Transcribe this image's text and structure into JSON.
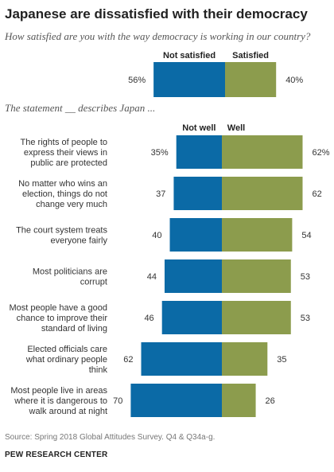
{
  "title": "Japanese are dissatisfied with their democracy",
  "subtitle": "How satisfied are you with the way democracy is working in our country?",
  "chart_data": [
    {
      "type": "bar",
      "orientation": "horizontal-diverging",
      "series": [
        {
          "name": "Not satisfied",
          "color": "#0b6aa6",
          "values": [
            56
          ],
          "value_labels": [
            "56%"
          ]
        },
        {
          "name": "Satisfied",
          "color": "#8c9c4d",
          "values": [
            40
          ],
          "value_labels": [
            "40%"
          ]
        }
      ],
      "categories": [
        ""
      ]
    },
    {
      "type": "bar",
      "orientation": "horizontal-diverging",
      "title": "The statement __ describes Japan ...",
      "categories": [
        "The rights of people to express their views in public are protected",
        "No matter who wins an election, things do not change very much",
        "The court system treats everyone fairly",
        "Most politicians are corrupt",
        "Most people have a good chance to improve their standard of living",
        "Elected officials care what ordinary people think",
        "Most people live in areas where it is dangerous to walk around at night"
      ],
      "category_lines": [
        [
          "The rights of people to",
          "express their views in",
          "public are protected"
        ],
        [
          "No matter who wins an",
          "election, things do not",
          "change very much"
        ],
        [
          "The court system treats",
          "everyone fairly"
        ],
        [
          "Most politicians are",
          "corrupt"
        ],
        [
          "Most people have a good",
          "chance to improve their",
          "standard of living"
        ],
        [
          "Elected officials care",
          "what ordinary people",
          "think"
        ],
        [
          "Most people live in areas",
          "where it is dangerous to",
          "walk around at night"
        ]
      ],
      "series": [
        {
          "name": "Not well",
          "color": "#0b6aa6",
          "values": [
            35,
            37,
            40,
            44,
            46,
            62,
            70
          ],
          "value_labels": [
            "35%",
            "37",
            "40",
            "44",
            "46",
            "62",
            "70"
          ]
        },
        {
          "name": "Well",
          "color": "#8c9c4d",
          "values": [
            62,
            62,
            54,
            53,
            53,
            35,
            26
          ],
          "value_labels": [
            "62%",
            "62",
            "54",
            "53",
            "53",
            "35",
            "26"
          ]
        }
      ]
    }
  ],
  "source": "Source: Spring 2018 Global Attitudes Survey. Q4 & Q34a-g.",
  "credit": "PEW RESEARCH CENTER"
}
